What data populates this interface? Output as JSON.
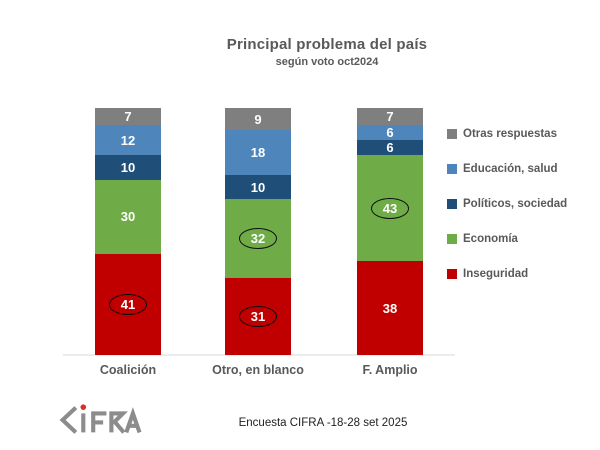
{
  "header": {
    "title": "Principal problema del país",
    "subtitle": "según voto oct2024"
  },
  "footer": {
    "caption": "Encuesta CIFRA -18-28 set 2025",
    "logo_text": "CIFRA"
  },
  "chart_data": {
    "type": "stacked-bar",
    "title": "Principal problema del país",
    "subtitle": "según voto oct2024",
    "categories": [
      "Coalición",
      "Otro, en blanco",
      "F. Amplio"
    ],
    "series": [
      {
        "name": "Otras respuestas",
        "color": "#7f7f7f",
        "values": [
          7,
          9,
          7
        ],
        "circled": [
          false,
          false,
          false
        ]
      },
      {
        "name": "Educación, salud",
        "color": "#4e86bc",
        "values": [
          12,
          18,
          6
        ],
        "circled": [
          false,
          false,
          false
        ]
      },
      {
        "name": "Políticos, sociedad",
        "color": "#1f4e79",
        "values": [
          10,
          10,
          6
        ],
        "circled": [
          false,
          false,
          false
        ]
      },
      {
        "name": "Economía",
        "color": "#6fac47",
        "values": [
          30,
          32,
          43
        ],
        "circled": [
          false,
          true,
          true
        ]
      },
      {
        "name": "Inseguridad",
        "color": "#c00000",
        "values": [
          41,
          31,
          38
        ],
        "circled": [
          true,
          true,
          false
        ]
      }
    ],
    "series_order": "top-to-bottom",
    "column_totals": [
      100,
      100,
      100
    ],
    "value_labels_shown": true,
    "legend_position": "right",
    "axis": {
      "gridlines": false,
      "y_axis_shown": false,
      "x_baseline_shown": true
    }
  }
}
